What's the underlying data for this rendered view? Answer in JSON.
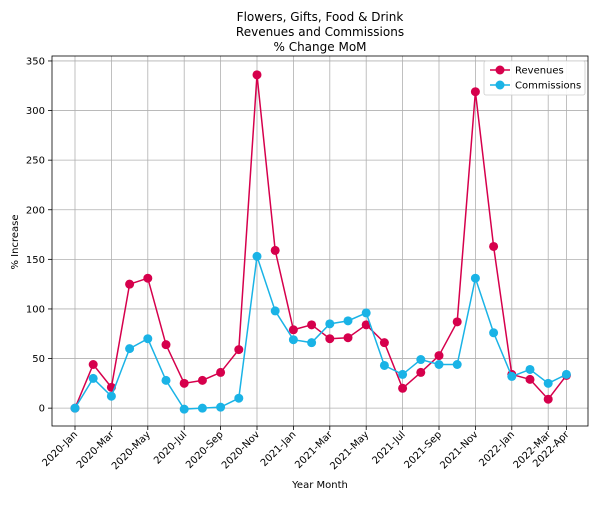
{
  "chart_data": {
    "type": "line",
    "title_lines": [
      "Flowers, Gifts, Food & Drink",
      "Revenues and Commissions",
      "% Change MoM"
    ],
    "xlabel": "Year Month",
    "ylabel": "% Increase",
    "ylim": [
      -18,
      355
    ],
    "yticks": [
      0,
      50,
      100,
      150,
      200,
      250,
      300,
      350
    ],
    "grid": true,
    "legend_position": "top-right",
    "categories": [
      "2020-Jan",
      "2020-Feb",
      "2020-Mar",
      "2020-Apr",
      "2020-May",
      "2020-Jun",
      "2020-Jul",
      "2020-Aug",
      "2020-Sep",
      "2020-Oct",
      "2020-Nov",
      "2020-Dec",
      "2021-Jan",
      "2021-Feb",
      "2021-Mar",
      "2021-Apr",
      "2021-May",
      "2021-Jun",
      "2021-Jul",
      "2021-Aug",
      "2021-Sep",
      "2021-Oct",
      "2021-Nov",
      "2021-Dec",
      "2022-Jan",
      "2022-Feb",
      "2022-Mar",
      "2022-Apr"
    ],
    "tick_labels": [
      "2020-Jan",
      "2020-Mar",
      "2020-May",
      "2020-Jul",
      "2020-Sep",
      "2020-Nov",
      "2021-Jan",
      "2021-Mar",
      "2021-May",
      "2021-Jul",
      "2021-Sep",
      "2021-Nov",
      "2022-Jan",
      "2022-Mar",
      "2022-Apr"
    ],
    "series": [
      {
        "name": "Revenues",
        "color": "#d6004c",
        "values": [
          0,
          44,
          21,
          125,
          131,
          64,
          25,
          28,
          36,
          59,
          336,
          159,
          79,
          84,
          70,
          71,
          84,
          66,
          20,
          36,
          53,
          87,
          319,
          163,
          34,
          29,
          9,
          33
        ]
      },
      {
        "name": "Commissions",
        "color": "#1ab3e6",
        "values": [
          0,
          30,
          12,
          60,
          70,
          28,
          -1,
          0,
          1,
          10,
          153,
          98,
          69,
          66,
          85,
          88,
          96,
          43,
          34,
          49,
          44,
          44,
          131,
          76,
          32,
          39,
          25,
          34
        ]
      }
    ]
  }
}
